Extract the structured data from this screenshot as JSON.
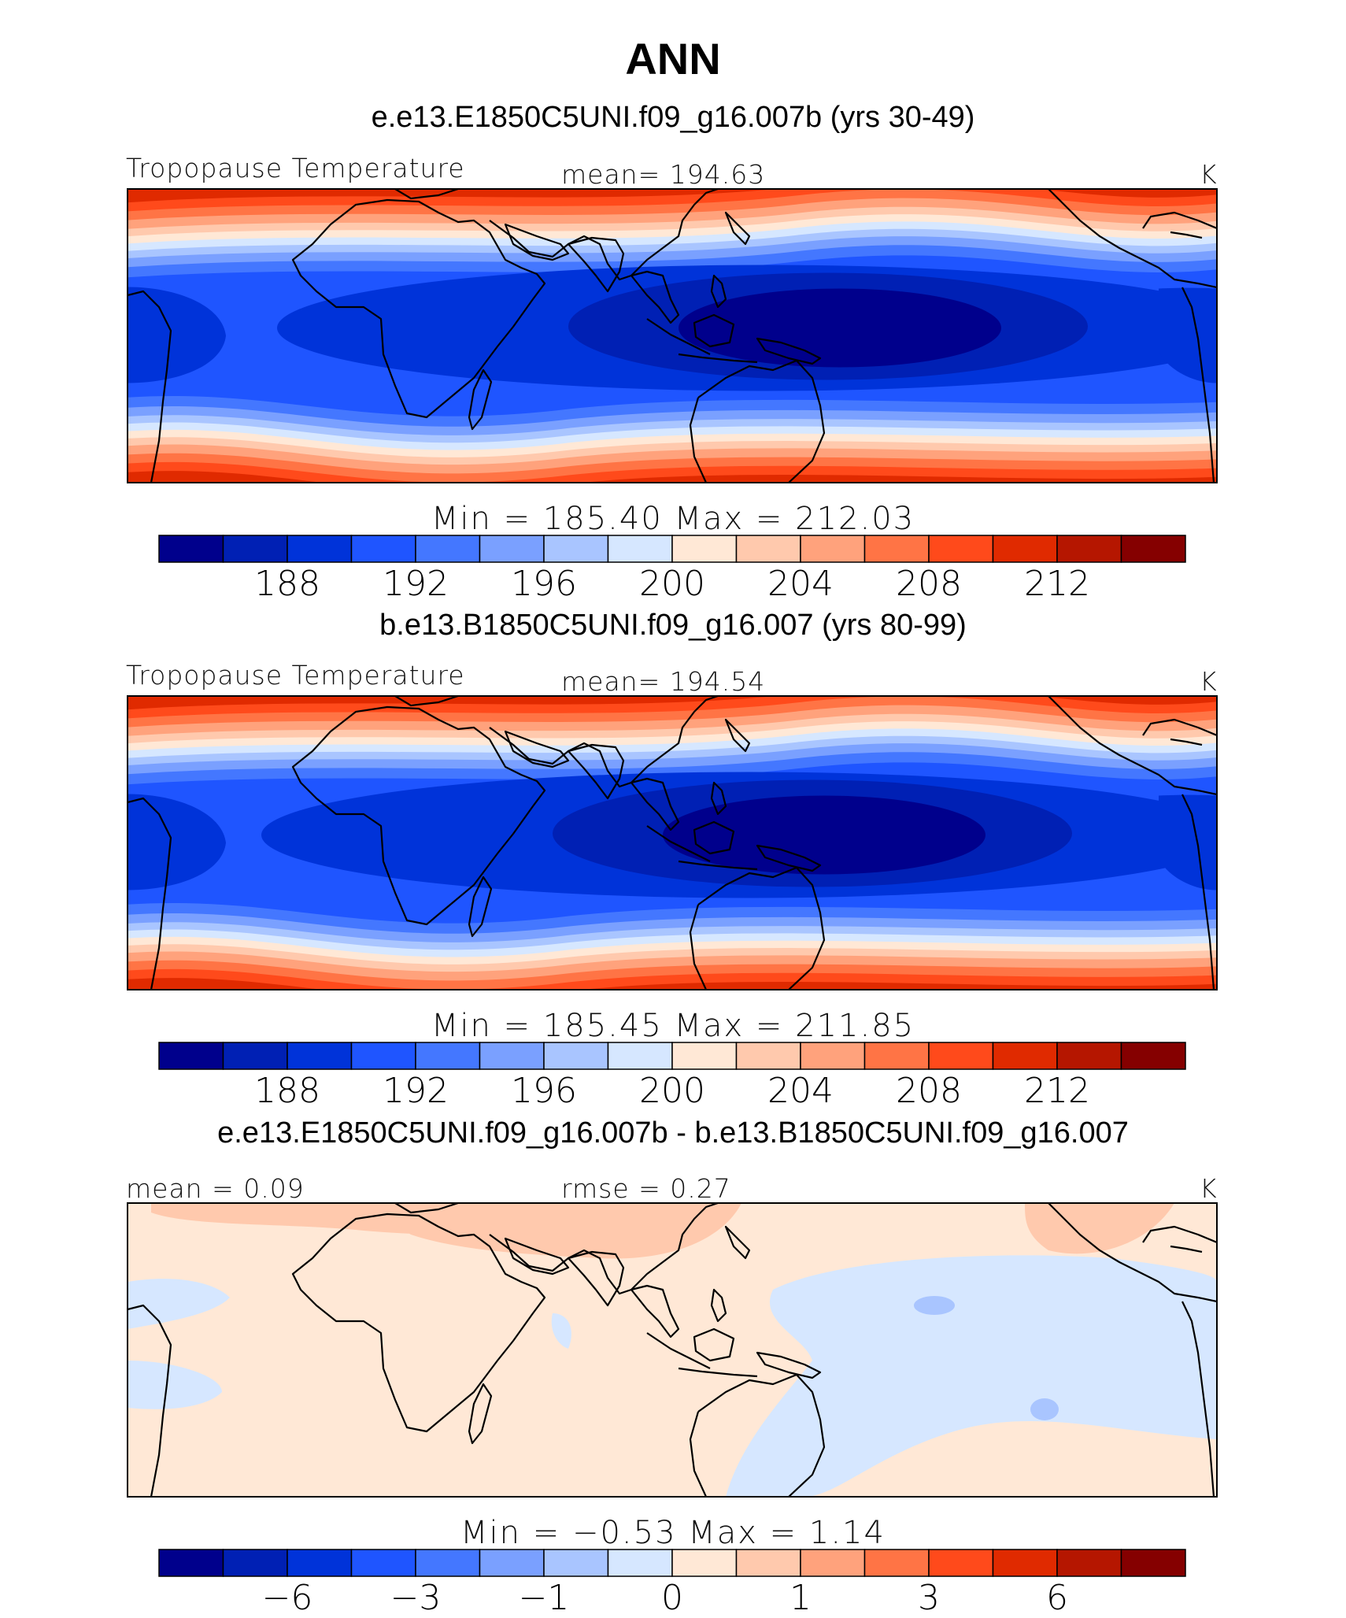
{
  "figure": {
    "title": "ANN",
    "colors": [
      "#00008c",
      "#0020b4",
      "#0033d9",
      "#1f55ff",
      "#4477ff",
      "#7aa0ff",
      "#a9c5ff",
      "#d6e7ff",
      "#ffe8d6",
      "#ffc9ad",
      "#ffa27c",
      "#ff7445",
      "#ff4a1b",
      "#e02a00",
      "#b51600",
      "#850000"
    ]
  },
  "chart_data": [
    {
      "type": "heatmap",
      "title": "e.e13.E1850C5UNI.f09_g16.007b (yrs 30-49)",
      "variable": "Tropopause Temperature",
      "mean_label": "mean=  194.63",
      "units": "K",
      "minmax_label": "Min  =  185.40  Max  =  212.03",
      "colorbar_ticks": [
        "188",
        "192",
        "196",
        "200",
        "204",
        "208",
        "212"
      ],
      "levels": [
        186,
        188,
        190,
        192,
        194,
        196,
        198,
        200,
        202,
        204,
        206,
        208,
        210,
        212,
        214
      ],
      "min": 185.4,
      "max": 212.03,
      "mean": 194.63
    },
    {
      "type": "heatmap",
      "title": "b.e13.B1850C5UNI.f09_g16.007 (yrs 80-99)",
      "variable": "Tropopause Temperature",
      "mean_label": "mean=  194.54",
      "units": "K",
      "minmax_label": "Min  =  185.45  Max  =  211.85",
      "colorbar_ticks": [
        "188",
        "192",
        "196",
        "200",
        "204",
        "208",
        "212"
      ],
      "levels": [
        186,
        188,
        190,
        192,
        194,
        196,
        198,
        200,
        202,
        204,
        206,
        208,
        210,
        212,
        214
      ],
      "min": 185.45,
      "max": 211.85,
      "mean": 194.54
    },
    {
      "type": "heatmap",
      "title": "e.e13.E1850C5UNI.f09_g16.007b - b.e13.B1850C5UNI.f09_g16.007",
      "mean_label": "mean  =    0.09",
      "rmse_label": "rmse  =    0.27",
      "units": "K",
      "minmax_label": "Min  =    −0.53  Max  =      1.14",
      "colorbar_ticks": [
        "−6",
        "−3",
        "−1",
        "0",
        "1",
        "3",
        "6"
      ],
      "min": -0.53,
      "max": 1.14,
      "mean": 0.09,
      "rmse": 0.27
    }
  ]
}
